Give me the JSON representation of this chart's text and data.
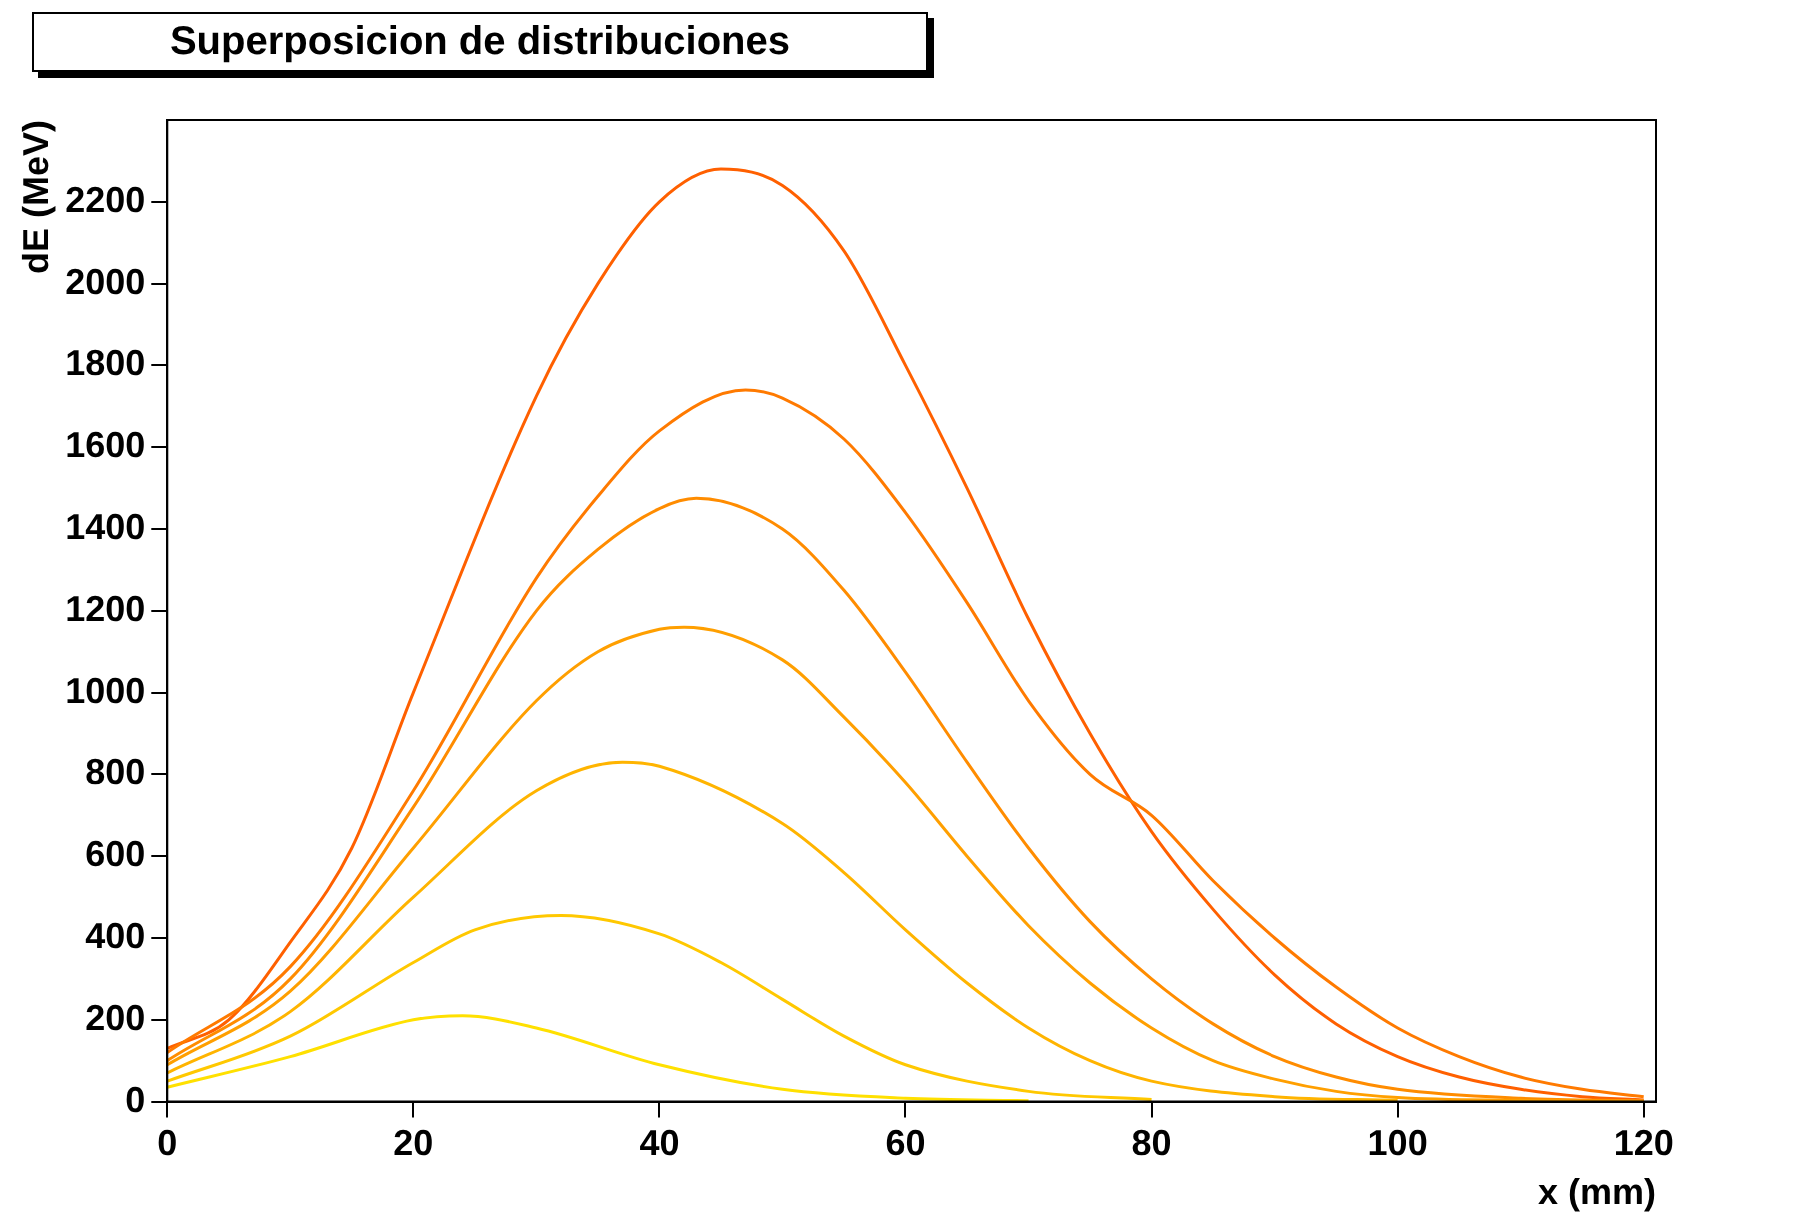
{
  "chart_data": {
    "type": "line",
    "title": "Superposicion de distribuciones",
    "xlabel": "x (mm)",
    "ylabel": "dE (MeV)",
    "xlim": [
      0,
      121
    ],
    "xticks": [
      0,
      20,
      40,
      60,
      80,
      100,
      120
    ],
    "ylim": [
      0,
      2400
    ],
    "yticks": [
      0,
      200,
      400,
      600,
      800,
      1000,
      1200,
      1400,
      1600,
      1800,
      2000,
      2200
    ],
    "grid": false,
    "legend": false,
    "marker": "none",
    "line_style": "solid",
    "series": [
      {
        "color": "#ffe000",
        "x": [
          0,
          10,
          20,
          24,
          30,
          40,
          50,
          60,
          70
        ],
        "values": [
          35,
          110,
          200,
          210,
          180,
          90,
          30,
          8,
          2
        ]
      },
      {
        "color": "#ffc800",
        "x": [
          0,
          10,
          20,
          25,
          32,
          40,
          45,
          50,
          55,
          60,
          70,
          80
        ],
        "values": [
          50,
          160,
          340,
          420,
          455,
          410,
          340,
          250,
          160,
          90,
          25,
          5
        ]
      },
      {
        "color": "#ffb400",
        "x": [
          0,
          10,
          20,
          30,
          37,
          40,
          50,
          55,
          60,
          65,
          70,
          75,
          80,
          90,
          100
        ],
        "values": [
          70,
          220,
          500,
          760,
          830,
          820,
          680,
          560,
          420,
          290,
          180,
          100,
          50,
          12,
          3
        ]
      },
      {
        "color": "#ff9f00",
        "x": [
          0,
          10,
          20,
          30,
          35,
          40,
          42,
          50,
          55,
          60,
          65,
          70,
          75,
          80,
          85,
          90,
          95,
          100,
          110,
          120
        ],
        "values": [
          90,
          270,
          620,
          980,
          1100,
          1155,
          1160,
          1080,
          940,
          780,
          600,
          430,
          290,
          180,
          100,
          55,
          25,
          10,
          3,
          1
        ]
      },
      {
        "color": "#ff8c00",
        "x": [
          0,
          10,
          20,
          30,
          35,
          40,
          43,
          50,
          55,
          60,
          65,
          70,
          75,
          80,
          85,
          90,
          95,
          100,
          110,
          120
        ],
        "values": [
          100,
          300,
          720,
          1200,
          1350,
          1450,
          1475,
          1400,
          1250,
          1050,
          830,
          620,
          440,
          300,
          190,
          110,
          60,
          30,
          8,
          2
        ]
      },
      {
        "color": "#ff7a00",
        "x": [
          0,
          10,
          20,
          30,
          35,
          40,
          47,
          50,
          55,
          60,
          65,
          70,
          75,
          80,
          85,
          90,
          95,
          100,
          105,
          110,
          115,
          120
        ],
        "values": [
          120,
          330,
          760,
          1280,
          1480,
          1640,
          1740,
          1720,
          1620,
          1440,
          1220,
          980,
          800,
          700,
          540,
          400,
          280,
          180,
          110,
          60,
          30,
          12
        ]
      },
      {
        "color": "#ff6000",
        "x": [
          0,
          5,
          10,
          15,
          20,
          30,
          35,
          40,
          45,
          50,
          55,
          60,
          65,
          70,
          75,
          80,
          85,
          90,
          95,
          100,
          105,
          110,
          115,
          120
        ],
        "values": [
          130,
          200,
          390,
          620,
          1000,
          1725,
          2000,
          2200,
          2280,
          2240,
          2080,
          1800,
          1500,
          1180,
          900,
          660,
          470,
          310,
          190,
          110,
          60,
          30,
          12,
          4
        ]
      }
    ]
  }
}
